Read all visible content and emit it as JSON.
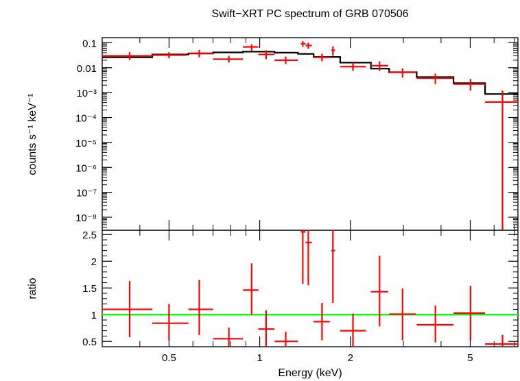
{
  "chart_data": [
    {
      "type": "scatter",
      "panel": "spectrum",
      "title": "Swift−XRT PC spectrum of GRB 070506",
      "xlabel": "Energy (keV)",
      "ylabel": "counts s⁻¹ keV⁻¹",
      "xscale": "log",
      "yscale": "log",
      "xlim": [
        0.3,
        7.2
      ],
      "ylim": [
        3e-09,
        0.16
      ],
      "ytick_labels": [
        "0.1",
        "0.01",
        "10⁻³",
        "10⁻⁴",
        "10⁻⁵",
        "10⁻⁶",
        "10⁻⁷",
        "10⁻⁸"
      ],
      "series": [
        {
          "kind": "data",
          "color": "#ff0000",
          "points": [
            {
              "x": 0.37,
              "xlo": 0.3,
              "xhi": 0.44,
              "y": 0.03,
              "ylo": 0.02,
              "yhi": 0.042
            },
            {
              "x": 0.5,
              "xlo": 0.44,
              "xhi": 0.57,
              "y": 0.032,
              "ylo": 0.024,
              "yhi": 0.042
            },
            {
              "x": 0.63,
              "xlo": 0.58,
              "xhi": 0.7,
              "y": 0.038,
              "ylo": 0.026,
              "yhi": 0.052
            },
            {
              "x": 0.79,
              "xlo": 0.7,
              "xhi": 0.88,
              "y": 0.022,
              "ylo": 0.016,
              "yhi": 0.03
            },
            {
              "x": 0.94,
              "xlo": 0.88,
              "xhi": 0.99,
              "y": 0.068,
              "ylo": 0.048,
              "yhi": 0.088
            },
            {
              "x": 1.05,
              "xlo": 0.99,
              "xhi": 1.12,
              "y": 0.034,
              "ylo": 0.022,
              "yhi": 0.05
            },
            {
              "x": 1.22,
              "xlo": 1.12,
              "xhi": 1.34,
              "y": 0.02,
              "ylo": 0.014,
              "yhi": 0.028
            },
            {
              "x": 1.39,
              "xlo": 1.37,
              "xhi": 1.42,
              "y": 0.092,
              "ylo": 0.07,
              "yhi": 0.115
            },
            {
              "x": 1.45,
              "xlo": 1.42,
              "xhi": 1.49,
              "y": 0.078,
              "ylo": 0.058,
              "yhi": 0.1
            },
            {
              "x": 1.61,
              "xlo": 1.51,
              "xhi": 1.71,
              "y": 0.026,
              "ylo": 0.018,
              "yhi": 0.036
            },
            {
              "x": 1.75,
              "xlo": 1.73,
              "xhi": 1.78,
              "y": 0.05,
              "ylo": 0.03,
              "yhi": 0.072
            },
            {
              "x": 2.04,
              "xlo": 1.85,
              "xhi": 2.25,
              "y": 0.011,
              "ylo": 0.0075,
              "yhi": 0.016
            },
            {
              "x": 2.5,
              "xlo": 2.34,
              "xhi": 2.67,
              "y": 0.012,
              "ylo": 0.0075,
              "yhi": 0.018
            },
            {
              "x": 2.98,
              "xlo": 2.69,
              "xhi": 3.3,
              "y": 0.0065,
              "ylo": 0.004,
              "yhi": 0.0095
            },
            {
              "x": 3.83,
              "xlo": 3.32,
              "xhi": 4.4,
              "y": 0.0038,
              "ylo": 0.0022,
              "yhi": 0.0058
            },
            {
              "x": 5.01,
              "xlo": 4.4,
              "xhi": 5.6,
              "y": 0.0022,
              "ylo": 0.0012,
              "yhi": 0.0035
            },
            {
              "x": 6.4,
              "xlo": 5.6,
              "xhi": 7.2,
              "y": 0.00042,
              "ylo": 1e-09,
              "yhi": 0.0012
            }
          ]
        },
        {
          "kind": "model",
          "color": "#000000",
          "steps": [
            {
              "xlo": 0.3,
              "xhi": 0.44,
              "y": 0.026
            },
            {
              "xlo": 0.44,
              "xhi": 0.58,
              "y": 0.034
            },
            {
              "xlo": 0.58,
              "xhi": 0.7,
              "y": 0.037
            },
            {
              "xlo": 0.7,
              "xhi": 0.88,
              "y": 0.041
            },
            {
              "xlo": 0.88,
              "xhi": 1.12,
              "y": 0.044
            },
            {
              "xlo": 1.12,
              "xhi": 1.34,
              "y": 0.04
            },
            {
              "xlo": 1.34,
              "xhi": 1.51,
              "y": 0.036
            },
            {
              "xlo": 1.51,
              "xhi": 1.85,
              "y": 0.027
            },
            {
              "xlo": 1.85,
              "xhi": 2.34,
              "y": 0.016
            },
            {
              "xlo": 2.34,
              "xhi": 2.69,
              "y": 0.0092
            },
            {
              "xlo": 2.69,
              "xhi": 3.32,
              "y": 0.0066
            },
            {
              "xlo": 3.32,
              "xhi": 4.4,
              "y": 0.0042
            },
            {
              "xlo": 4.4,
              "xhi": 5.6,
              "y": 0.0024
            },
            {
              "xlo": 5.6,
              "xhi": 7.2,
              "y": 0.00088
            }
          ]
        }
      ]
    },
    {
      "type": "scatter",
      "panel": "ratio",
      "ylabel": "ratio",
      "xlabel": "Energy (keV)",
      "xscale": "log",
      "xlim": [
        0.3,
        7.2
      ],
      "ylim": [
        0.4,
        2.58
      ],
      "yticks": [
        0.5,
        1,
        1.5,
        2,
        2.5
      ],
      "ytick_labels": [
        "0.5",
        "1",
        "1.5",
        "2",
        "2.5"
      ],
      "xticks": [
        0.5,
        1,
        2,
        5
      ],
      "xtick_labels": [
        "0.5",
        "1",
        "2",
        "5"
      ],
      "reference_line": {
        "y": 1,
        "color": "#00ff00"
      },
      "series": [
        {
          "kind": "ratio",
          "color": "#ff0000",
          "points": [
            {
              "x": 0.37,
              "xlo": 0.3,
              "xhi": 0.44,
              "y": 1.1,
              "ylo": 0.58,
              "yhi": 1.63
            },
            {
              "x": 0.5,
              "xlo": 0.44,
              "xhi": 0.58,
              "y": 0.84,
              "ylo": 0.52,
              "yhi": 1.2
            },
            {
              "x": 0.63,
              "xlo": 0.58,
              "xhi": 0.7,
              "y": 1.1,
              "ylo": 0.62,
              "yhi": 1.65
            },
            {
              "x": 0.79,
              "xlo": 0.7,
              "xhi": 0.88,
              "y": 0.55,
              "ylo": 0.4,
              "yhi": 0.76
            },
            {
              "x": 0.94,
              "xlo": 0.88,
              "xhi": 0.99,
              "y": 1.46,
              "ylo": 1.0,
              "yhi": 1.96
            },
            {
              "x": 1.05,
              "xlo": 0.99,
              "xhi": 1.12,
              "y": 0.73,
              "ylo": 0.4,
              "yhi": 1.08
            },
            {
              "x": 1.22,
              "xlo": 1.12,
              "xhi": 1.34,
              "y": 0.5,
              "ylo": 0.4,
              "yhi": 0.68
            },
            {
              "x": 1.39,
              "xlo": 1.37,
              "xhi": 1.42,
              "y": 2.55,
              "ylo": 1.58,
              "yhi": 2.58
            },
            {
              "x": 1.45,
              "xlo": 1.42,
              "xhi": 1.49,
              "y": 2.35,
              "ylo": 1.55,
              "yhi": 2.58
            },
            {
              "x": 1.61,
              "xlo": 1.51,
              "xhi": 1.71,
              "y": 0.87,
              "ylo": 0.52,
              "yhi": 1.22
            },
            {
              "x": 1.75,
              "xlo": 1.73,
              "xhi": 1.78,
              "y": 2.2,
              "ylo": 1.22,
              "yhi": 2.58
            },
            {
              "x": 2.04,
              "xlo": 1.85,
              "xhi": 2.25,
              "y": 0.7,
              "ylo": 0.4,
              "yhi": 1.02
            },
            {
              "x": 2.5,
              "xlo": 2.34,
              "xhi": 2.67,
              "y": 1.43,
              "ylo": 0.78,
              "yhi": 2.1
            },
            {
              "x": 2.98,
              "xlo": 2.69,
              "xhi": 3.3,
              "y": 1.01,
              "ylo": 0.52,
              "yhi": 1.49
            },
            {
              "x": 3.83,
              "xlo": 3.32,
              "xhi": 4.4,
              "y": 0.81,
              "ylo": 0.48,
              "yhi": 1.17
            },
            {
              "x": 5.01,
              "xlo": 4.4,
              "xhi": 5.6,
              "y": 1.03,
              "ylo": 0.52,
              "yhi": 1.54
            },
            {
              "x": 6.4,
              "xlo": 5.6,
              "xhi": 7.2,
              "y": 0.45,
              "ylo": 0.4,
              "yhi": 0.62
            }
          ]
        }
      ]
    }
  ]
}
